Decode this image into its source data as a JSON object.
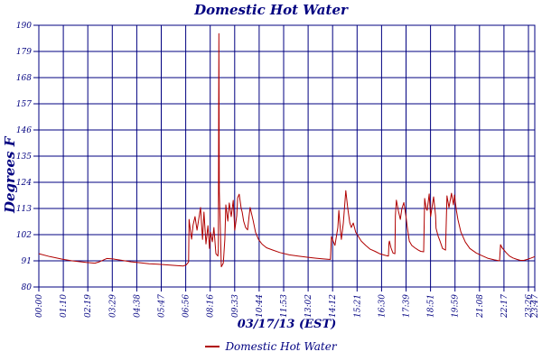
{
  "colors": {
    "axis_and_text": "#000080",
    "grid": "#000080",
    "series_line": "#b00000",
    "background": "#ffffff"
  },
  "chart_data": {
    "type": "line",
    "title": "Domestic Hot Water",
    "xlabel": "03/17/13 (EST)",
    "ylabel": "Degrees F",
    "grid": true,
    "legend_position": "bottom",
    "ylim": [
      80,
      190
    ],
    "y_ticks": [
      80,
      91,
      102,
      113,
      124,
      135,
      146,
      157,
      168,
      179,
      190
    ],
    "x_ticks": [
      "00:00",
      "01:10",
      "02:19",
      "03:29",
      "04:38",
      "05:47",
      "06:56",
      "08:16",
      "09:33",
      "10:44",
      "11:53",
      "13:02",
      "14:12",
      "15:21",
      "16:30",
      "17:39",
      "18:51",
      "19:59",
      "21:08",
      "22:17",
      "23:26",
      "23:47"
    ],
    "series": [
      {
        "name": "Domestic Hot Water",
        "color": "#b00000",
        "x_unit": "percent_of_plot_width",
        "y_unit": "degrees_F",
        "points": [
          [
            0.0,
            94.0
          ],
          [
            2.2,
            92.8
          ],
          [
            4.9,
            91.6
          ],
          [
            6.7,
            91.0
          ],
          [
            9.5,
            90.3
          ],
          [
            11.3,
            90.0
          ],
          [
            12.2,
            90.6
          ],
          [
            13.7,
            92.0
          ],
          [
            14.9,
            91.8
          ],
          [
            16.8,
            91.2
          ],
          [
            18.6,
            90.6
          ],
          [
            20.4,
            90.2
          ],
          [
            22.2,
            89.8
          ],
          [
            24.0,
            89.6
          ],
          [
            25.9,
            89.3
          ],
          [
            27.7,
            89.0
          ],
          [
            29.1,
            88.8
          ],
          [
            29.7,
            89.3
          ],
          [
            30.2,
            90.5
          ],
          [
            30.3,
            108.4
          ],
          [
            30.6,
            103.0
          ],
          [
            30.8,
            100.1
          ],
          [
            31.1,
            106.0
          ],
          [
            31.5,
            109.6
          ],
          [
            31.9,
            103.9
          ],
          [
            32.2,
            108.0
          ],
          [
            32.6,
            113.4
          ],
          [
            33.0,
            100.0
          ],
          [
            33.3,
            111.5
          ],
          [
            33.7,
            98.1
          ],
          [
            34.1,
            105.8
          ],
          [
            34.4,
            96.2
          ],
          [
            34.6,
            103.0
          ],
          [
            35.0,
            99.0
          ],
          [
            35.3,
            105.0
          ],
          [
            35.7,
            94.0
          ],
          [
            36.1,
            93.0
          ],
          [
            36.2,
            96.0
          ],
          [
            36.3,
            186.5
          ],
          [
            36.4,
            120.0
          ],
          [
            36.6,
            105.0
          ],
          [
            36.8,
            88.5
          ],
          [
            37.2,
            90.0
          ],
          [
            37.5,
            100.0
          ],
          [
            37.7,
            114.5
          ],
          [
            38.1,
            107.7
          ],
          [
            38.4,
            115.3
          ],
          [
            38.8,
            109.6
          ],
          [
            39.2,
            116.4
          ],
          [
            39.5,
            103.9
          ],
          [
            39.9,
            110.0
          ],
          [
            40.1,
            117.5
          ],
          [
            40.4,
            119.0
          ],
          [
            40.8,
            113.0
          ],
          [
            41.0,
            111.5
          ],
          [
            41.3,
            107.7
          ],
          [
            41.7,
            105.0
          ],
          [
            42.1,
            104.0
          ],
          [
            42.4,
            110.0
          ],
          [
            42.6,
            113.4
          ],
          [
            43.2,
            108.0
          ],
          [
            43.7,
            103.0
          ],
          [
            44.3,
            100.0
          ],
          [
            45.0,
            98.0
          ],
          [
            45.9,
            96.5
          ],
          [
            47.2,
            95.5
          ],
          [
            48.6,
            94.5
          ],
          [
            50.5,
            93.5
          ],
          [
            52.3,
            93.0
          ],
          [
            54.1,
            92.5
          ],
          [
            55.9,
            92.1
          ],
          [
            57.4,
            91.8
          ],
          [
            58.5,
            91.6
          ],
          [
            58.8,
            91.6
          ],
          [
            59.0,
            101.2
          ],
          [
            59.4,
            99.0
          ],
          [
            59.7,
            97.5
          ],
          [
            60.3,
            105.0
          ],
          [
            60.5,
            112.2
          ],
          [
            60.8,
            104.0
          ],
          [
            61.0,
            100.0
          ],
          [
            61.4,
            107.0
          ],
          [
            61.7,
            115.0
          ],
          [
            61.9,
            120.5
          ],
          [
            62.3,
            113.0
          ],
          [
            62.7,
            107.0
          ],
          [
            63.0,
            105.0
          ],
          [
            63.4,
            106.9
          ],
          [
            63.9,
            103.0
          ],
          [
            64.5,
            101.0
          ],
          [
            65.0,
            99.3
          ],
          [
            65.9,
            97.5
          ],
          [
            66.8,
            95.9
          ],
          [
            67.8,
            95.0
          ],
          [
            68.7,
            94.0
          ],
          [
            69.8,
            93.3
          ],
          [
            70.5,
            93.0
          ],
          [
            70.6,
            98.5
          ],
          [
            70.7,
            99.3
          ],
          [
            71.0,
            96.5
          ],
          [
            71.4,
            94.3
          ],
          [
            71.8,
            94.0
          ],
          [
            71.9,
            110.0
          ],
          [
            72.1,
            116.5
          ],
          [
            72.5,
            112.0
          ],
          [
            72.9,
            108.4
          ],
          [
            73.2,
            113.0
          ],
          [
            73.6,
            115.5
          ],
          [
            74.0,
            110.0
          ],
          [
            74.3,
            105.0
          ],
          [
            74.7,
            99.3
          ],
          [
            75.2,
            97.5
          ],
          [
            75.8,
            96.5
          ],
          [
            76.5,
            95.5
          ],
          [
            77.0,
            95.0
          ],
          [
            77.6,
            94.8
          ],
          [
            77.8,
            117.2
          ],
          [
            78.1,
            113.0
          ],
          [
            78.3,
            112.2
          ],
          [
            78.7,
            119.1
          ],
          [
            79.0,
            109.6
          ],
          [
            79.6,
            117.9
          ],
          [
            80.0,
            110.0
          ],
          [
            80.1,
            104.7
          ],
          [
            80.5,
            101.5
          ],
          [
            80.9,
            99.3
          ],
          [
            81.4,
            96.2
          ],
          [
            82.0,
            95.5
          ],
          [
            82.3,
            118.3
          ],
          [
            82.7,
            113.4
          ],
          [
            83.2,
            119.4
          ],
          [
            83.6,
            114.5
          ],
          [
            83.8,
            118.7
          ],
          [
            84.2,
            112.0
          ],
          [
            84.5,
            108.4
          ],
          [
            85.1,
            103.1
          ],
          [
            86.0,
            98.9
          ],
          [
            86.9,
            96.2
          ],
          [
            88.2,
            94.3
          ],
          [
            89.3,
            93.2
          ],
          [
            90.5,
            92.1
          ],
          [
            91.8,
            91.4
          ],
          [
            92.9,
            91.0
          ],
          [
            93.1,
            97.8
          ],
          [
            93.4,
            96.5
          ],
          [
            94.2,
            94.5
          ],
          [
            94.9,
            93.0
          ],
          [
            95.6,
            92.2
          ],
          [
            96.4,
            91.6
          ],
          [
            97.1,
            91.2
          ],
          [
            97.8,
            91.2
          ],
          [
            98.5,
            91.6
          ],
          [
            99.3,
            92.2
          ],
          [
            100.0,
            92.8
          ]
        ]
      }
    ]
  }
}
